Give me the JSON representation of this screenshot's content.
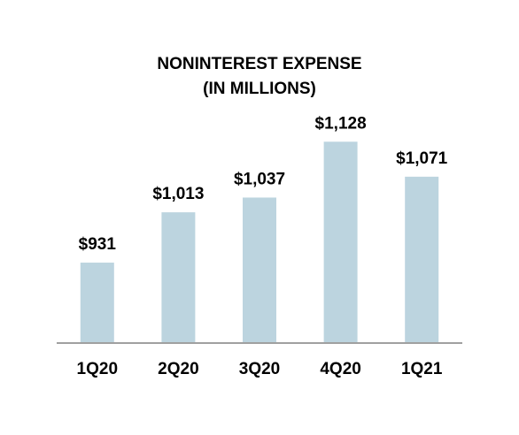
{
  "chart_data": {
    "type": "bar",
    "title": "NONINTEREST EXPENSE",
    "subtitle": "(IN MILLIONS)",
    "categories": [
      "1Q20",
      "2Q20",
      "3Q20",
      "4Q20",
      "1Q21"
    ],
    "values": [
      931,
      1013,
      1037,
      1128,
      1071
    ],
    "value_labels": [
      "$931",
      "$1,013",
      "$1,037",
      "$1,128",
      "$1,071"
    ],
    "color": "#bcd4df",
    "ylim": [
      800,
      1150
    ]
  }
}
